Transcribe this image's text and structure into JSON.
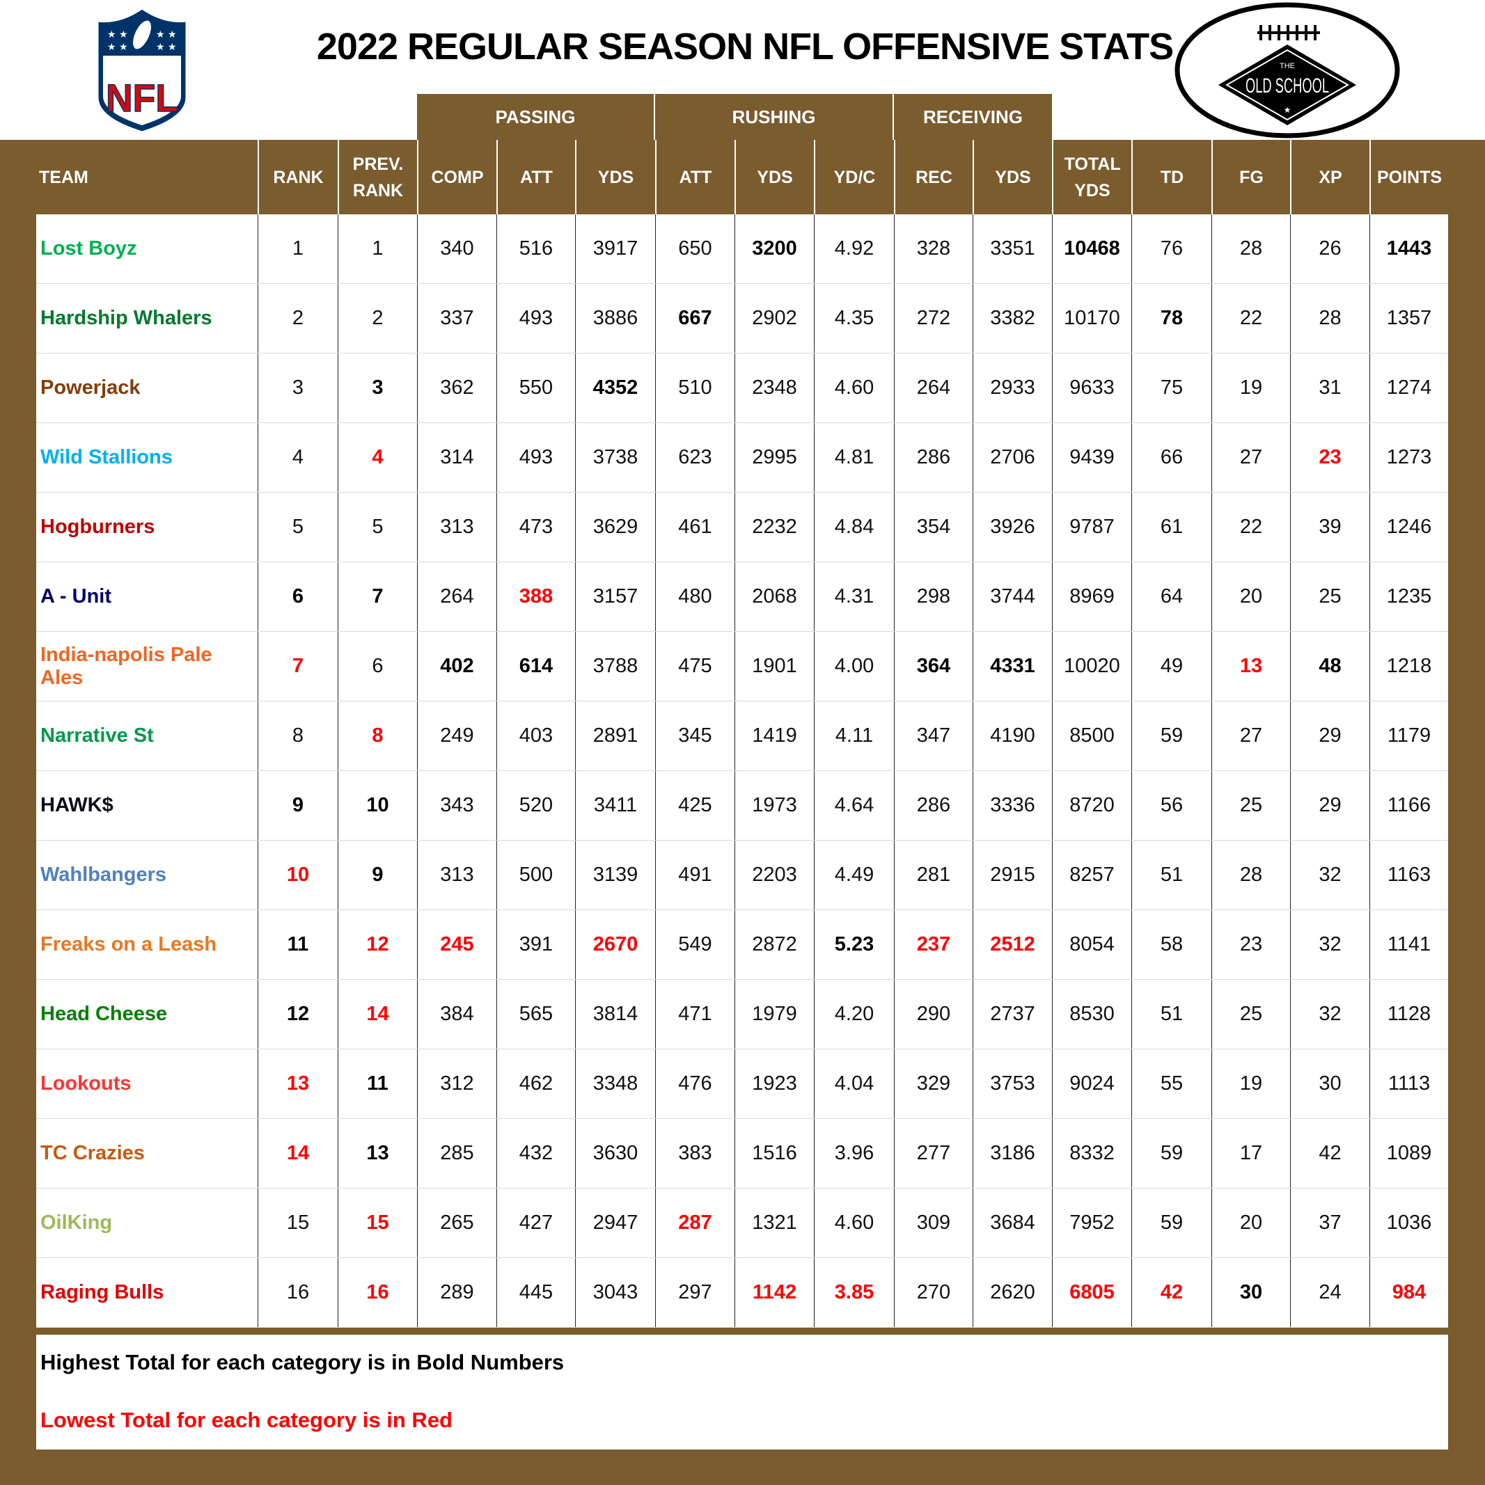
{
  "title": "2022 REGULAR SEASON NFL OFFENSIVE STATS",
  "logos": {
    "left": "NFL",
    "right": "THE OLD SCHOOL"
  },
  "colors": {
    "header_bg": "#7a5c2e",
    "lowest": "#ff0000",
    "highest": "#000000"
  },
  "groups": {
    "passing": "PASSING",
    "rushing": "RUSHING",
    "receiving": "RECEIVING"
  },
  "columns": [
    {
      "key": "team",
      "label": "TEAM"
    },
    {
      "key": "rank",
      "label": "RANK"
    },
    {
      "key": "prev",
      "label": "PREV. RANK"
    },
    {
      "key": "comp",
      "label": "COMP"
    },
    {
      "key": "patt",
      "label": "ATT"
    },
    {
      "key": "pyds",
      "label": "YDS"
    },
    {
      "key": "ratt",
      "label": "ATT"
    },
    {
      "key": "ryds",
      "label": "YDS"
    },
    {
      "key": "ydc",
      "label": "YD/C"
    },
    {
      "key": "rec",
      "label": "REC"
    },
    {
      "key": "recyds",
      "label": "YDS"
    },
    {
      "key": "total",
      "label": "TOTAL YDS"
    },
    {
      "key": "td",
      "label": "TD"
    },
    {
      "key": "fg",
      "label": "FG"
    },
    {
      "key": "xp",
      "label": "XP"
    },
    {
      "key": "points",
      "label": "POINTS"
    }
  ],
  "rows": [
    {
      "team": "Lost Boyz",
      "team_color": "#00b050",
      "rank": "1",
      "prev": "1",
      "comp": "340",
      "patt": "516",
      "pyds": "3917",
      "ratt": "650",
      "ryds": "3200",
      "ydc": "4.92",
      "rec": "328",
      "recyds": "3351",
      "total": "10468",
      "td": "76",
      "fg": "28",
      "xp": "26",
      "points": "1443",
      "bold": [
        "ryds",
        "total",
        "points"
      ],
      "red": []
    },
    {
      "team": "Hardship Whalers",
      "team_color": "#007a2e",
      "rank": "2",
      "prev": "2",
      "comp": "337",
      "patt": "493",
      "pyds": "3886",
      "ratt": "667",
      "ryds": "2902",
      "ydc": "4.35",
      "rec": "272",
      "recyds": "3382",
      "total": "10170",
      "td": "78",
      "fg": "22",
      "xp": "28",
      "points": "1357",
      "bold": [
        "ratt",
        "td"
      ],
      "red": []
    },
    {
      "team": "Powerjack",
      "team_color": "#843c0c",
      "rank": "3",
      "prev": "3",
      "comp": "362",
      "patt": "550",
      "pyds": "4352",
      "ratt": "510",
      "ryds": "2348",
      "ydc": "4.60",
      "rec": "264",
      "recyds": "2933",
      "total": "9633",
      "td": "75",
      "fg": "19",
      "xp": "31",
      "points": "1274",
      "bold": [
        "prev",
        "pyds"
      ],
      "red": []
    },
    {
      "team": "Wild Stallions",
      "team_color": "#00b0f0",
      "rank": "4",
      "prev": "4",
      "comp": "314",
      "patt": "493",
      "pyds": "3738",
      "ratt": "623",
      "ryds": "2995",
      "ydc": "4.81",
      "rec": "286",
      "recyds": "2706",
      "total": "9439",
      "td": "66",
      "fg": "27",
      "xp": "23",
      "points": "1273",
      "bold": [],
      "red": [
        "prev",
        "xp"
      ]
    },
    {
      "team": "Hogburners",
      "team_color": "#c00000",
      "rank": "5",
      "prev": "5",
      "comp": "313",
      "patt": "473",
      "pyds": "3629",
      "ratt": "461",
      "ryds": "2232",
      "ydc": "4.84",
      "rec": "354",
      "recyds": "3926",
      "total": "9787",
      "td": "61",
      "fg": "22",
      "xp": "39",
      "points": "1246",
      "bold": [],
      "red": []
    },
    {
      "team": "A - Unit",
      "team_color": "#000066",
      "rank": "6",
      "prev": "7",
      "comp": "264",
      "patt": "388",
      "pyds": "3157",
      "ratt": "480",
      "ryds": "2068",
      "ydc": "4.31",
      "rec": "298",
      "recyds": "3744",
      "total": "8969",
      "td": "64",
      "fg": "20",
      "xp": "25",
      "points": "1235",
      "bold": [
        "rank",
        "prev"
      ],
      "red": [
        "patt"
      ]
    },
    {
      "team": "India-napolis Pale Ales",
      "team_color": "#f26522",
      "rank": "7",
      "prev": "6",
      "comp": "402",
      "patt": "614",
      "pyds": "3788",
      "ratt": "475",
      "ryds": "1901",
      "ydc": "4.00",
      "rec": "364",
      "recyds": "4331",
      "total": "10020",
      "td": "49",
      "fg": "13",
      "xp": "48",
      "points": "1218",
      "bold": [
        "comp",
        "patt",
        "rec",
        "recyds",
        "xp"
      ],
      "red": [
        "rank",
        "fg"
      ]
    },
    {
      "team": "Narrative St",
      "team_color": "#00994c",
      "rank": "8",
      "prev": "8",
      "comp": "249",
      "patt": "403",
      "pyds": "2891",
      "ratt": "345",
      "ryds": "1419",
      "ydc": "4.11",
      "rec": "347",
      "recyds": "4190",
      "total": "8500",
      "td": "59",
      "fg": "27",
      "xp": "29",
      "points": "1179",
      "bold": [],
      "red": [
        "prev"
      ]
    },
    {
      "team": "HAWK$",
      "team_color": "#0d0d1a",
      "rank": "9",
      "prev": "10",
      "comp": "343",
      "patt": "520",
      "pyds": "3411",
      "ratt": "425",
      "ryds": "1973",
      "ydc": "4.64",
      "rec": "286",
      "recyds": "3336",
      "total": "8720",
      "td": "56",
      "fg": "25",
      "xp": "29",
      "points": "1166",
      "bold": [
        "rank",
        "prev"
      ],
      "red": []
    },
    {
      "team": "Wahlbangers",
      "team_color": "#4f81bd",
      "rank": "10",
      "prev": "9",
      "comp": "313",
      "patt": "500",
      "pyds": "3139",
      "ratt": "491",
      "ryds": "2203",
      "ydc": "4.49",
      "rec": "281",
      "recyds": "2915",
      "total": "8257",
      "td": "51",
      "fg": "28",
      "xp": "32",
      "points": "1163",
      "bold": [
        "prev"
      ],
      "red": [
        "rank"
      ]
    },
    {
      "team": "Freaks on a Leash",
      "team_color": "#e87722",
      "rank": "11",
      "prev": "12",
      "comp": "245",
      "patt": "391",
      "pyds": "2670",
      "ratt": "549",
      "ryds": "2872",
      "ydc": "5.23",
      "rec": "237",
      "recyds": "2512",
      "total": "8054",
      "td": "58",
      "fg": "23",
      "xp": "32",
      "points": "1141",
      "bold": [
        "rank",
        "ydc"
      ],
      "red": [
        "prev",
        "comp",
        "pyds",
        "rec",
        "recyds"
      ]
    },
    {
      "team": "Head Cheese",
      "team_color": "#008000",
      "rank": "12",
      "prev": "14",
      "comp": "384",
      "patt": "565",
      "pyds": "3814",
      "ratt": "471",
      "ryds": "1979",
      "ydc": "4.20",
      "rec": "290",
      "recyds": "2737",
      "total": "8530",
      "td": "51",
      "fg": "25",
      "xp": "32",
      "points": "1128",
      "bold": [
        "rank"
      ],
      "red": [
        "prev"
      ]
    },
    {
      "team": "Lookouts",
      "team_color": "#ff3333",
      "rank": "13",
      "prev": "11",
      "comp": "312",
      "patt": "462",
      "pyds": "3348",
      "ratt": "476",
      "ryds": "1923",
      "ydc": "4.04",
      "rec": "329",
      "recyds": "3753",
      "total": "9024",
      "td": "55",
      "fg": "19",
      "xp": "30",
      "points": "1113",
      "bold": [
        "prev"
      ],
      "red": [
        "rank"
      ]
    },
    {
      "team": "TC Crazies",
      "team_color": "#c65911",
      "rank": "14",
      "prev": "13",
      "comp": "285",
      "patt": "432",
      "pyds": "3630",
      "ratt": "383",
      "ryds": "1516",
      "ydc": "3.96",
      "rec": "277",
      "recyds": "3186",
      "total": "8332",
      "td": "59",
      "fg": "17",
      "xp": "42",
      "points": "1089",
      "bold": [
        "prev"
      ],
      "red": [
        "rank"
      ]
    },
    {
      "team": "OilKing",
      "team_color": "#9bbb59",
      "rank": "15",
      "prev": "15",
      "comp": "265",
      "patt": "427",
      "pyds": "2947",
      "ratt": "287",
      "ryds": "1321",
      "ydc": "4.60",
      "rec": "309",
      "recyds": "3684",
      "total": "7952",
      "td": "59",
      "fg": "20",
      "xp": "37",
      "points": "1036",
      "bold": [],
      "red": [
        "prev",
        "ratt"
      ]
    },
    {
      "team": "Raging Bulls",
      "team_color": "#e00000",
      "rank": "16",
      "prev": "16",
      "comp": "289",
      "patt": "445",
      "pyds": "3043",
      "ratt": "297",
      "ryds": "1142",
      "ydc": "3.85",
      "rec": "270",
      "recyds": "2620",
      "total": "6805",
      "td": "42",
      "fg": "30",
      "xp": "24",
      "points": "984",
      "bold": [
        "fg"
      ],
      "red": [
        "prev",
        "ryds",
        "ydc",
        "total",
        "td",
        "points"
      ]
    }
  ],
  "footer": {
    "bold_note": "Highest Total for each category is in Bold Numbers",
    "red_note": "Lowest Total for each category is in Red"
  }
}
